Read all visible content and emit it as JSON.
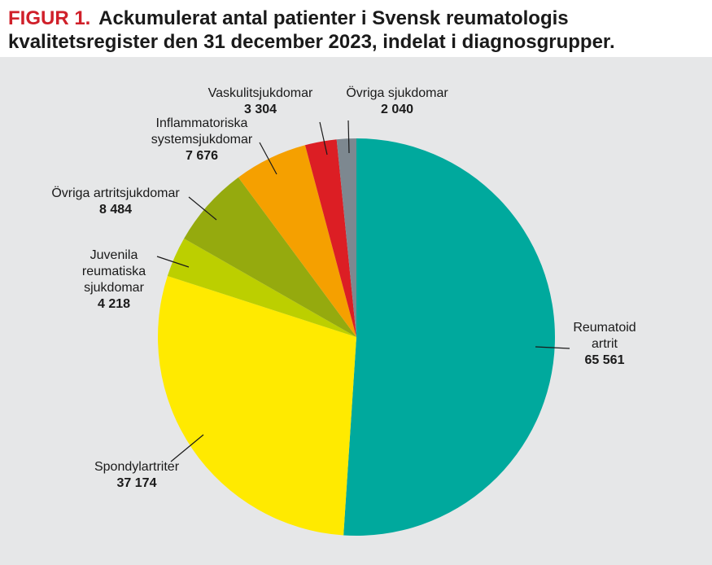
{
  "figure": {
    "label": "FIGUR 1.",
    "title": "Ackumulerat antal patienter i Svensk reumatologis kvalitetsregister den 31 december 2023, indelat i diagnosgrupper."
  },
  "chart_data": {
    "type": "pie",
    "title": "Ackumulerat antal patienter i Svensk reumatologis kvalitetsregister den 31 december 2023, indelat i diagnosgrupper.",
    "slices": [
      {
        "label": [
          "Reumatoid",
          "artrit"
        ],
        "value": 65561,
        "value_text": "65 561",
        "color": "#00a99d"
      },
      {
        "label": [
          "Spondylartriter"
        ],
        "value": 37174,
        "value_text": "37 174",
        "color": "#ffea00"
      },
      {
        "label": [
          "Juvenila",
          "reumatiska",
          "sjukdomar"
        ],
        "value": 4218,
        "value_text": "4 218",
        "color": "#bccf00"
      },
      {
        "label": [
          "Övriga artritsjukdomar"
        ],
        "value": 8484,
        "value_text": "8 484",
        "color": "#95aa0e"
      },
      {
        "label": [
          "Inflammatoriska",
          "systemsjukdomar"
        ],
        "value": 7676,
        "value_text": "7 676",
        "color": "#f5a000"
      },
      {
        "label": [
          "Vaskulitsjukdomar"
        ],
        "value": 3304,
        "value_text": "3 304",
        "color": "#dc1e24"
      },
      {
        "label": [
          "Övriga sjukdomar"
        ],
        "value": 2040,
        "value_text": "2 040",
        "color": "#7d8890"
      }
    ]
  }
}
